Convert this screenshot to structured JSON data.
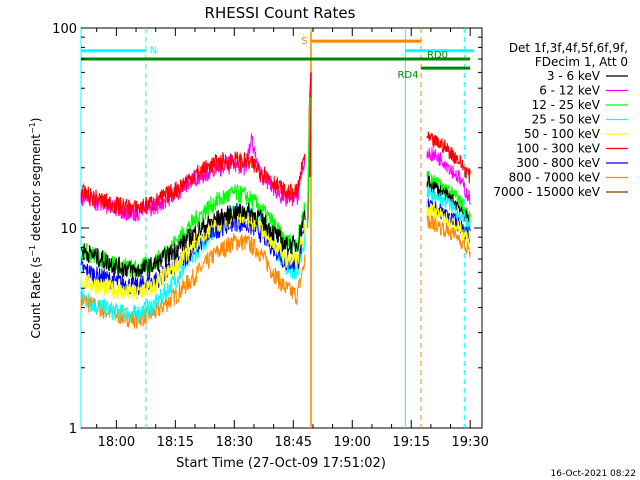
{
  "chart_data": {
    "type": "line",
    "title": "RHESSI Count Rates",
    "xlabel": "Start Time (27-Oct-09 17:51:02)",
    "ylabel_main": "Count Rate (s",
    "ylabel_sup1": "−1",
    "ylabel_mid": " detector segment",
    "ylabel_sup2": "−1",
    "ylabel_end": ")",
    "yscale": "log",
    "ylim": [
      1,
      100
    ],
    "y_ticks": [
      "1",
      "10",
      "100"
    ],
    "xlim_minutes_after_1800": [
      -9,
      93
    ],
    "x_ticks": [
      {
        "label": "18:00",
        "min": 0
      },
      {
        "label": "18:15",
        "min": 15
      },
      {
        "label": "18:30",
        "min": 30
      },
      {
        "label": "18:45",
        "min": 45
      },
      {
        "label": "19:00",
        "min": 60
      },
      {
        "label": "19:15",
        "min": 75
      },
      {
        "label": "19:30",
        "min": 90
      }
    ],
    "legend_header": [
      "Det 1f,3f,4f,5f,6f,9f,",
      "FDecim 1, Att 0"
    ],
    "legend_position": "right",
    "series": [
      {
        "name": "3 - 6 keV",
        "color": "#000000",
        "points": [
          [
            -9,
            7.8
          ],
          [
            -5,
            7.2
          ],
          [
            0,
            6.5
          ],
          [
            5,
            6.1
          ],
          [
            10,
            6.6
          ],
          [
            15,
            7.8
          ],
          [
            20,
            9.5
          ],
          [
            25,
            11
          ],
          [
            30,
            12
          ],
          [
            33,
            12.2
          ],
          [
            36,
            11.5
          ],
          [
            40,
            9.5
          ],
          [
            43,
            8.2
          ],
          [
            46,
            8.3
          ],
          [
            48,
            12
          ]
        ]
      },
      {
        "name": "6 - 12 keV",
        "color": "#ff00ff",
        "points": [
          [
            -9,
            14.5
          ],
          [
            -5,
            13.5
          ],
          [
            0,
            12.5
          ],
          [
            5,
            12
          ],
          [
            10,
            13
          ],
          [
            15,
            15
          ],
          [
            20,
            18
          ],
          [
            25,
            20
          ],
          [
            30,
            21
          ],
          [
            33,
            20.5
          ],
          [
            34.5,
            28
          ],
          [
            36,
            19.5
          ],
          [
            40,
            16
          ],
          [
            43,
            14
          ],
          [
            46,
            14.5
          ],
          [
            48,
            22
          ]
        ]
      },
      {
        "name": "12 - 25 keV",
        "color": "#00ff00",
        "points": [
          [
            -9,
            7.8
          ],
          [
            -5,
            7.2
          ],
          [
            0,
            6.6
          ],
          [
            5,
            6.2
          ],
          [
            10,
            6.8
          ],
          [
            15,
            8.5
          ],
          [
            20,
            11
          ],
          [
            25,
            13.5
          ],
          [
            30,
            15
          ],
          [
            33,
            14.5
          ],
          [
            36,
            13
          ],
          [
            40,
            10.5
          ],
          [
            43,
            8.5
          ],
          [
            46,
            8.5
          ],
          [
            48,
            13
          ]
        ]
      },
      {
        "name": "25 - 50 keV",
        "color": "#00ffff",
        "points": [
          [
            -9,
            4.6
          ],
          [
            -5,
            4.1
          ],
          [
            0,
            3.8
          ],
          [
            5,
            3.7
          ],
          [
            10,
            4.2
          ],
          [
            15,
            5.5
          ],
          [
            20,
            7.5
          ],
          [
            25,
            10
          ],
          [
            30,
            12
          ],
          [
            33,
            12
          ],
          [
            36,
            11
          ],
          [
            40,
            8.5
          ],
          [
            43,
            6.5
          ],
          [
            46,
            6
          ],
          [
            48,
            9
          ]
        ]
      },
      {
        "name": "50 - 100 keV",
        "color": "#ffff00",
        "points": [
          [
            -9,
            5.5
          ],
          [
            -5,
            5.2
          ],
          [
            0,
            4.9
          ],
          [
            5,
            4.7
          ],
          [
            10,
            5.2
          ],
          [
            15,
            6.5
          ],
          [
            20,
            8.5
          ],
          [
            25,
            10.5
          ],
          [
            30,
            11.5
          ],
          [
            33,
            11.3
          ],
          [
            36,
            10.5
          ],
          [
            40,
            8.5
          ],
          [
            43,
            7
          ],
          [
            46,
            6.8
          ],
          [
            48,
            10
          ]
        ]
      },
      {
        "name": "100 - 300 keV",
        "color": "#ff0000",
        "points": [
          [
            -9,
            15
          ],
          [
            -5,
            14
          ],
          [
            0,
            13
          ],
          [
            5,
            12.5
          ],
          [
            10,
            13.5
          ],
          [
            15,
            15.5
          ],
          [
            20,
            18.5
          ],
          [
            25,
            21
          ],
          [
            30,
            22
          ],
          [
            33,
            21.5
          ],
          [
            36,
            20
          ],
          [
            40,
            17
          ],
          [
            43,
            15
          ],
          [
            46,
            15
          ],
          [
            48,
            24
          ]
        ]
      },
      {
        "name": "300 - 800 keV",
        "color": "#0000ff",
        "points": [
          [
            -9,
            6.3
          ],
          [
            -5,
            5.8
          ],
          [
            0,
            5.4
          ],
          [
            5,
            5.1
          ],
          [
            10,
            5.5
          ],
          [
            15,
            6.5
          ],
          [
            20,
            8
          ],
          [
            25,
            9.8
          ],
          [
            30,
            10.8
          ],
          [
            33,
            10.5
          ],
          [
            36,
            9.8
          ],
          [
            40,
            8
          ],
          [
            43,
            6.8
          ],
          [
            46,
            6.6
          ],
          [
            48,
            10
          ]
        ]
      },
      {
        "name": "800 - 7000 keV",
        "color": "#ff8800",
        "points": [
          [
            -9,
            4.4
          ],
          [
            -5,
            4
          ],
          [
            0,
            3.7
          ],
          [
            5,
            3.5
          ],
          [
            10,
            3.8
          ],
          [
            15,
            4.6
          ],
          [
            20,
            5.8
          ],
          [
            25,
            7.4
          ],
          [
            30,
            8.6
          ],
          [
            33,
            8.5
          ],
          [
            36,
            7.8
          ],
          [
            40,
            6
          ],
          [
            43,
            5
          ],
          [
            46,
            4.6
          ],
          [
            48,
            7
          ]
        ]
      },
      {
        "name": "7000 - 15000 keV",
        "color": "#804000",
        "points": []
      }
    ],
    "series_after_gap": [
      {
        "color": "#ff0000",
        "points": [
          [
            79,
            28
          ],
          [
            83,
            26
          ],
          [
            87,
            22
          ],
          [
            90,
            18
          ]
        ]
      },
      {
        "color": "#ff00ff",
        "points": [
          [
            79,
            24
          ],
          [
            83,
            22
          ],
          [
            87,
            18
          ],
          [
            90,
            14
          ]
        ]
      },
      {
        "color": "#00ff00",
        "points": [
          [
            79,
            18
          ],
          [
            83,
            16
          ],
          [
            87,
            14
          ],
          [
            90,
            11
          ]
        ]
      },
      {
        "color": "#000000",
        "points": [
          [
            79,
            17
          ],
          [
            83,
            15
          ],
          [
            87,
            13
          ],
          [
            90,
            10.5
          ]
        ]
      },
      {
        "color": "#00ffff",
        "points": [
          [
            79,
            15
          ],
          [
            83,
            14
          ],
          [
            87,
            12
          ],
          [
            90,
            10
          ]
        ]
      },
      {
        "color": "#0000ff",
        "points": [
          [
            79,
            13
          ],
          [
            83,
            12
          ],
          [
            87,
            10.5
          ],
          [
            90,
            9
          ]
        ]
      },
      {
        "color": "#ffff00",
        "points": [
          [
            79,
            12.5
          ],
          [
            83,
            11.5
          ],
          [
            87,
            10
          ],
          [
            90,
            8.5
          ]
        ]
      },
      {
        "color": "#ff8800",
        "points": [
          [
            79,
            11
          ],
          [
            83,
            10
          ],
          [
            87,
            9
          ],
          [
            90,
            7.5
          ]
        ]
      }
    ],
    "flare": {
      "color": "#ff8800",
      "x_min": 49.5
    },
    "vertical_lines": [
      {
        "min": -9,
        "color": "#00ffff",
        "dash": false
      },
      {
        "min": 7.5,
        "color": "#00ffff",
        "dash": true
      },
      {
        "min": 49.5,
        "color": "#ff8800",
        "dash": false
      },
      {
        "min": 73.5,
        "color": "#00ffff",
        "dash": false
      },
      {
        "min": 77.5,
        "color": "#ff8800",
        "dash": true
      },
      {
        "min": 88.5,
        "color": "#00ffff",
        "dash": true
      }
    ],
    "markers": [
      {
        "label": "N",
        "color": "#00ffff",
        "y": 77,
        "from": -9,
        "to": 7.5,
        "label_at": 8.5
      },
      {
        "label": "",
        "color": "#00ffff",
        "y": 77,
        "from": 73.5,
        "to": 91,
        "label_at": null
      },
      {
        "label": "S",
        "color": "#ff8800",
        "y": 86,
        "from": 49.5,
        "to": 77.5,
        "label_at": 47
      },
      {
        "label": "RD0",
        "color": "#008800",
        "y": 70,
        "from": -9,
        "to": 90,
        "label_at": 79
      },
      {
        "label": "RD4",
        "color": "#008800",
        "y": 63,
        "from": 77.5,
        "to": 90,
        "label_at": 71.5
      }
    ]
  },
  "timestamp": "16-Oct-2021 08:22"
}
